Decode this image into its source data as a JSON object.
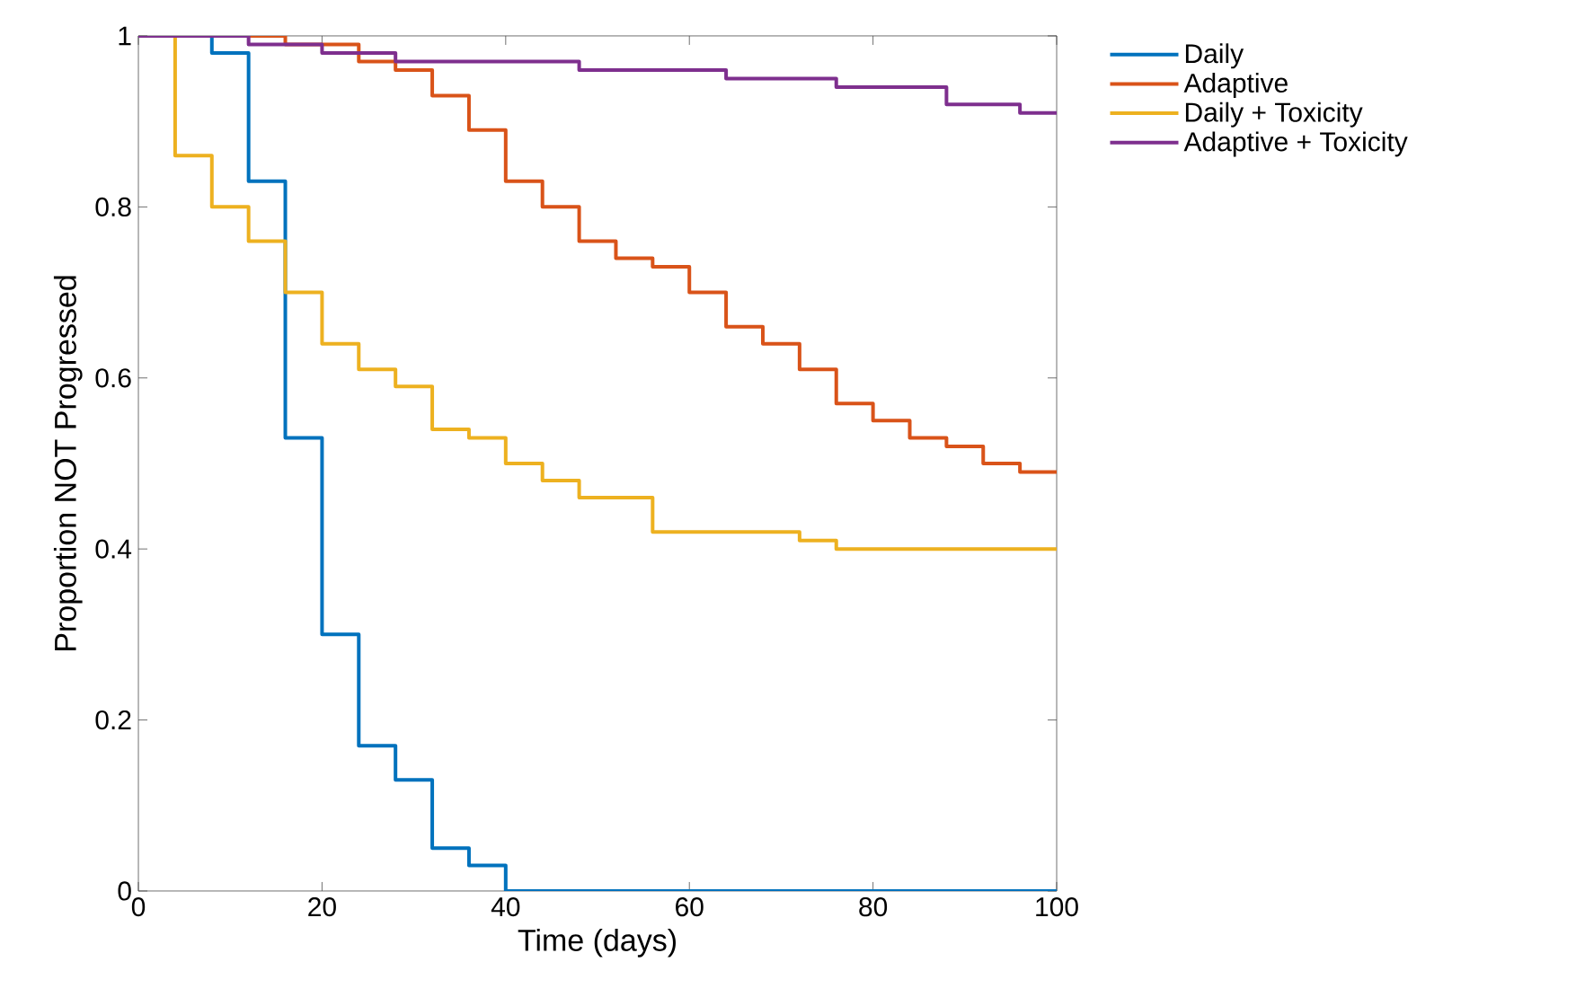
{
  "chart_data": {
    "type": "step",
    "xlabel": "Time (days)",
    "ylabel": "Proportion NOT Progressed",
    "xlim": [
      0,
      100
    ],
    "ylim": [
      0,
      1
    ],
    "xticks": [
      0,
      20,
      40,
      60,
      80,
      100
    ],
    "yticks": [
      0,
      0.2,
      0.4,
      0.6,
      0.8,
      1
    ],
    "grid": false,
    "legend": "top right",
    "line_style": "solid",
    "marker": "none",
    "series": [
      {
        "name": "Daily",
        "color": "#0072bd",
        "x": [
          0,
          8,
          12,
          16,
          20,
          24,
          28,
          32,
          36,
          40,
          100
        ],
        "values": [
          1,
          0.98,
          0.83,
          0.53,
          0.3,
          0.17,
          0.13,
          0.05,
          0.03,
          0,
          0
        ]
      },
      {
        "name": "Adaptive",
        "color": "#d95319",
        "x": [
          0,
          16,
          24,
          28,
          32,
          36,
          40,
          44,
          48,
          52,
          56,
          60,
          64,
          68,
          72,
          76,
          80,
          84,
          88,
          92,
          96,
          100
        ],
        "values": [
          1,
          0.99,
          0.97,
          0.96,
          0.93,
          0.89,
          0.83,
          0.8,
          0.76,
          0.74,
          0.73,
          0.7,
          0.66,
          0.64,
          0.61,
          0.57,
          0.55,
          0.53,
          0.52,
          0.5,
          0.49,
          0.49
        ]
      },
      {
        "name": "Daily + Toxicity",
        "color": "#edb120",
        "x": [
          0,
          4,
          8,
          12,
          16,
          20,
          24,
          28,
          32,
          36,
          40,
          44,
          48,
          56,
          72,
          76,
          100
        ],
        "values": [
          1,
          0.86,
          0.8,
          0.76,
          0.7,
          0.64,
          0.61,
          0.59,
          0.54,
          0.53,
          0.5,
          0.48,
          0.46,
          0.42,
          0.41,
          0.4,
          0.4
        ]
      },
      {
        "name": "Adaptive + Toxicity",
        "color": "#7e2f8e",
        "x": [
          0,
          12,
          20,
          28,
          48,
          64,
          76,
          88,
          96,
          100
        ],
        "values": [
          1,
          0.99,
          0.98,
          0.97,
          0.96,
          0.95,
          0.94,
          0.92,
          0.91,
          0.91
        ]
      }
    ]
  }
}
